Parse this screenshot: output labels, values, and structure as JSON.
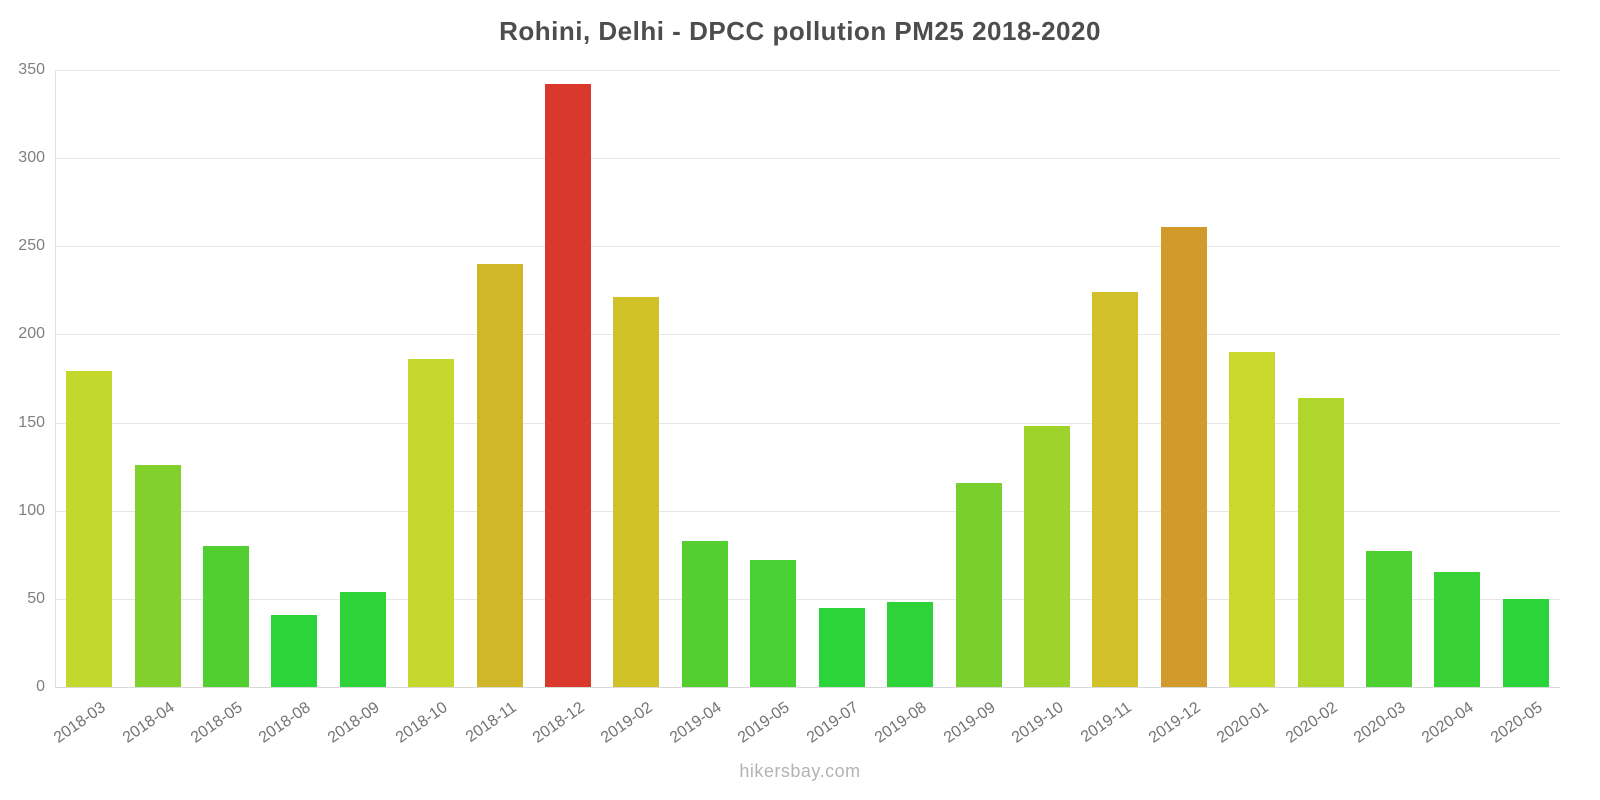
{
  "title": "Rohini, Delhi - DPCC pollution PM25 2018-2020",
  "watermark": "hikersbay.com",
  "chart_data": {
    "type": "bar",
    "title": "Rohini, Delhi - DPCC pollution PM25 2018-2020",
    "xlabel": "",
    "ylabel": "",
    "ylim": [
      0,
      350
    ],
    "yticks": [
      0,
      50,
      100,
      150,
      200,
      250,
      300,
      350
    ],
    "grid": true,
    "legend": "none",
    "categories": [
      "2018-03",
      "2018-04",
      "2018-05",
      "2018-08",
      "2018-09",
      "2018-10",
      "2018-11",
      "2018-12",
      "2019-02",
      "2019-04",
      "2019-05",
      "2019-07",
      "2019-08",
      "2019-09",
      "2019-10",
      "2019-11",
      "2019-12",
      "2020-01",
      "2020-02",
      "2020-03",
      "2020-04",
      "2020-05"
    ],
    "values": [
      179,
      126,
      80,
      41,
      54,
      186,
      240,
      342,
      221,
      83,
      72,
      45,
      48,
      116,
      148,
      224,
      261,
      190,
      164,
      77,
      65,
      50
    ],
    "bar_colors": [
      "#c3d72d",
      "#82d02c",
      "#51cf31",
      "#2ad43a",
      "#2ed339",
      "#c6d82d",
      "#d2b62a",
      "#da382d",
      "#d2c22a",
      "#55ce30",
      "#47d133",
      "#2bd43a",
      "#2ed339",
      "#79cf2d",
      "#9dd32b",
      "#d2c12a",
      "#d29a2a",
      "#c8d82d",
      "#b0d52c",
      "#4ecf32",
      "#38d236",
      "#2ad43a"
    ]
  },
  "colors": {
    "title": "#4d4d4d",
    "grid": "#e6e6e6",
    "axis": "#e0e0e0",
    "tick_label": "#808080",
    "watermark": "#b3b3b3"
  }
}
